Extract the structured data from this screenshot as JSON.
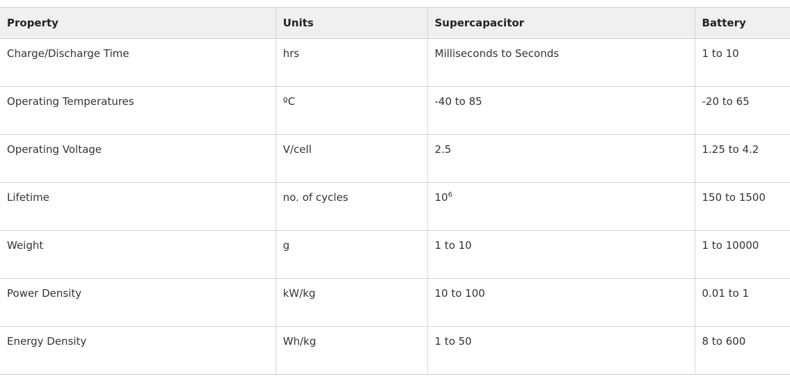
{
  "table": {
    "headers": [
      "Property",
      "Units",
      "Supercapacitor",
      "Battery"
    ],
    "rows": [
      {
        "property": "Charge/Discharge Time",
        "units": "hrs",
        "supercapacitor": "Milliseconds to Seconds",
        "battery": "1 to 10"
      },
      {
        "property": "Operating Temperatures",
        "units": "ºC",
        "supercapacitor": "-40 to 85",
        "battery": "-20 to 65"
      },
      {
        "property": "Operating Voltage",
        "units": "V/cell",
        "supercapacitor": "2.5",
        "battery": "1.25 to 4.2"
      },
      {
        "property": "Lifetime",
        "units": "no. of cycles",
        "supercapacitor_base": "10",
        "supercapacitor_exp": "6",
        "battery": "150 to 1500"
      },
      {
        "property": "Weight",
        "units": "g",
        "supercapacitor": "1 to 10",
        "battery": "1 to 10000"
      },
      {
        "property": "Power Density",
        "units": "kW/kg",
        "supercapacitor": "10 to 100",
        "battery": "0.01 to 1"
      },
      {
        "property": "Energy Density",
        "units": "Wh/kg",
        "supercapacitor": "1 to 50",
        "battery": "8 to 600"
      }
    ]
  }
}
